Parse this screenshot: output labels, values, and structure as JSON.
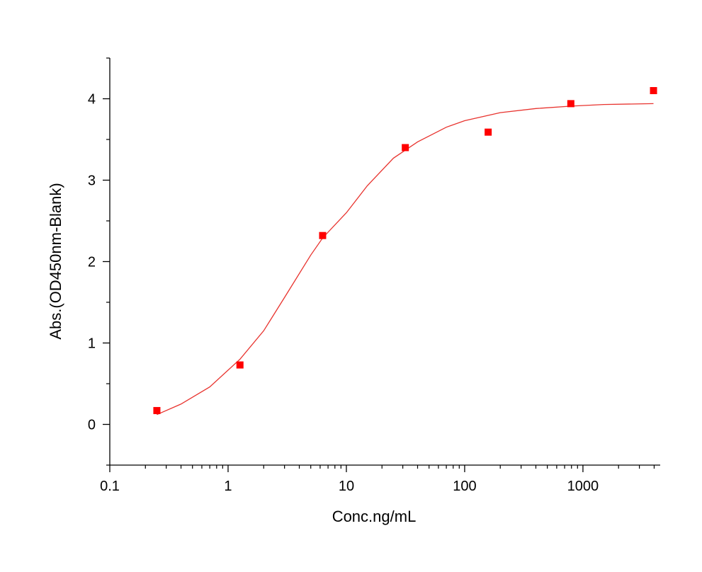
{
  "chart_data": {
    "type": "scatter",
    "title": "",
    "xlabel": "Conc.ng/mL",
    "ylabel": "Abs.(OD450nm-Blank)",
    "xscale": "log",
    "xlim": [
      0.1,
      4500
    ],
    "ylim": [
      -0.5,
      4.5
    ],
    "x_ticks": [
      0.1,
      1,
      10,
      100,
      1000
    ],
    "x_tick_labels": [
      "0.1",
      "1",
      "10",
      "100",
      "1000"
    ],
    "y_ticks": [
      0,
      1,
      2,
      3,
      4
    ],
    "y_tick_labels": [
      "0",
      "1",
      "2",
      "3",
      "4"
    ],
    "grid": false,
    "legend": "none",
    "series": [
      {
        "kind": "points",
        "marker": "square",
        "color": "#ff0000",
        "points": [
          {
            "x": 0.25,
            "y": 0.17
          },
          {
            "x": 1.26,
            "y": 0.73
          },
          {
            "x": 6.3,
            "y": 2.32
          },
          {
            "x": 31.5,
            "y": 3.4
          },
          {
            "x": 158,
            "y": 3.59
          },
          {
            "x": 790,
            "y": 3.94
          },
          {
            "x": 3950,
            "y": 4.1
          }
        ]
      },
      {
        "kind": "fit-curve",
        "color": "#e8332e",
        "points": [
          {
            "x": 0.25,
            "y": 0.12
          },
          {
            "x": 0.4,
            "y": 0.25
          },
          {
            "x": 0.7,
            "y": 0.46
          },
          {
            "x": 1.26,
            "y": 0.8
          },
          {
            "x": 2,
            "y": 1.15
          },
          {
            "x": 3,
            "y": 1.56
          },
          {
            "x": 5,
            "y": 2.08
          },
          {
            "x": 6.3,
            "y": 2.29
          },
          {
            "x": 10,
            "y": 2.6
          },
          {
            "x": 15,
            "y": 2.93
          },
          {
            "x": 25,
            "y": 3.27
          },
          {
            "x": 40,
            "y": 3.47
          },
          {
            "x": 70,
            "y": 3.65
          },
          {
            "x": 100,
            "y": 3.73
          },
          {
            "x": 200,
            "y": 3.83
          },
          {
            "x": 400,
            "y": 3.88
          },
          {
            "x": 800,
            "y": 3.91
          },
          {
            "x": 1500,
            "y": 3.93
          },
          {
            "x": 3950,
            "y": 3.94
          }
        ]
      }
    ]
  }
}
